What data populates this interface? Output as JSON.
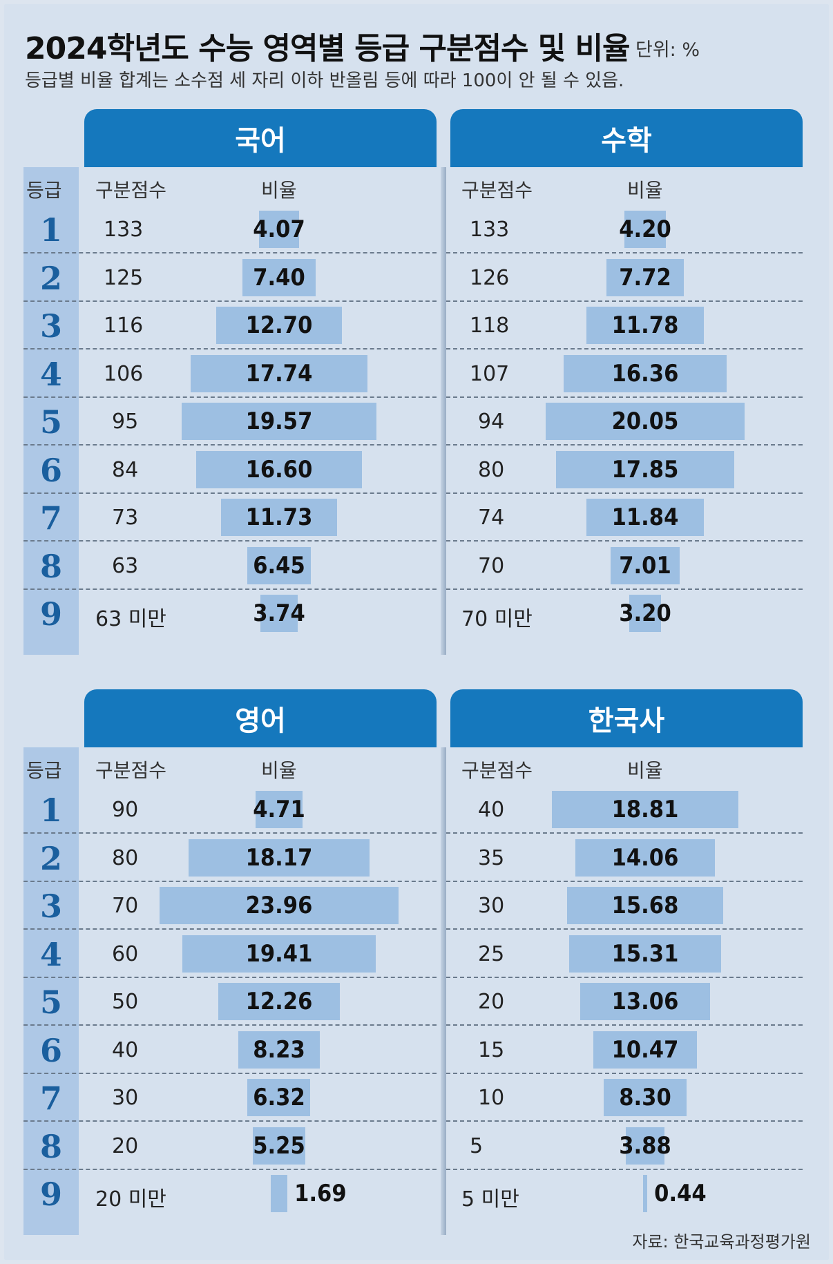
{
  "title": "2024학년도 수능 영역별 등급 구분점수 및 비율",
  "unit": "단위: %",
  "note": "등급별 비율 합계는 소수점 세 자리 이하 반올림 등에 따라 100이 안 될 수 있음.",
  "source": "자료: 한국교육과정평가원",
  "labels": {
    "grade": "등급",
    "cutoff": "구분점수",
    "ratio": "비율"
  },
  "chart_data": [
    {
      "type": "bar",
      "title": "국어",
      "categories": [
        "1",
        "2",
        "3",
        "4",
        "5",
        "6",
        "7",
        "8",
        "9"
      ],
      "cutoffs": [
        "133",
        "125",
        "116",
        "106",
        "95",
        "84",
        "73",
        "63",
        "63 미만"
      ],
      "values": [
        4.07,
        7.4,
        12.7,
        17.74,
        19.57,
        16.6,
        11.73,
        6.45,
        3.74
      ],
      "value_labels": [
        "4.07",
        "7.40",
        "12.70",
        "17.74",
        "19.57",
        "16.60",
        "11.73",
        "6.45",
        "3.74"
      ]
    },
    {
      "type": "bar",
      "title": "수학",
      "categories": [
        "1",
        "2",
        "3",
        "4",
        "5",
        "6",
        "7",
        "8",
        "9"
      ],
      "cutoffs": [
        "133",
        "126",
        "118",
        "107",
        "94",
        "80",
        "74",
        "70",
        "70 미만"
      ],
      "values": [
        4.2,
        7.72,
        11.78,
        16.36,
        20.05,
        17.85,
        11.84,
        7.01,
        3.2
      ],
      "value_labels": [
        "4.20",
        "7.72",
        "11.78",
        "16.36",
        "20.05",
        "17.85",
        "11.84",
        "7.01",
        "3.20"
      ]
    },
    {
      "type": "bar",
      "title": "영어",
      "categories": [
        "1",
        "2",
        "3",
        "4",
        "5",
        "6",
        "7",
        "8",
        "9"
      ],
      "cutoffs": [
        "90",
        "80",
        "70",
        "60",
        "50",
        "40",
        "30",
        "20",
        "20 미만"
      ],
      "values": [
        4.71,
        18.17,
        23.96,
        19.41,
        12.26,
        8.23,
        6.32,
        5.25,
        1.69
      ],
      "value_labels": [
        "4.71",
        "18.17",
        "23.96",
        "19.41",
        "12.26",
        "8.23",
        "6.32",
        "5.25",
        "1.69"
      ]
    },
    {
      "type": "bar",
      "title": "한국사",
      "categories": [
        "1",
        "2",
        "3",
        "4",
        "5",
        "6",
        "7",
        "8",
        "9"
      ],
      "cutoffs": [
        "40",
        "35",
        "30",
        "25",
        "20",
        "15",
        "10",
        "5",
        "5 미만"
      ],
      "values": [
        18.81,
        14.06,
        15.68,
        15.31,
        13.06,
        10.47,
        8.3,
        3.88,
        0.44
      ],
      "value_labels": [
        "18.81",
        "14.06",
        "15.68",
        "15.31",
        "13.06",
        "10.47",
        "8.30",
        "3.88",
        "0.44"
      ]
    }
  ],
  "colors": {
    "header": "#1578bd",
    "bar": "#9dbfe2",
    "grade_column": "#aec8e6",
    "background": "#d6e1ee"
  }
}
